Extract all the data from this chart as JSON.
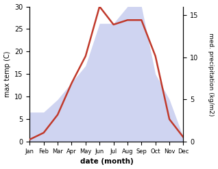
{
  "months": [
    "Jan",
    "Feb",
    "Mar",
    "Apr",
    "May",
    "Jun",
    "Jul",
    "Aug",
    "Sep",
    "Oct",
    "Nov",
    "Dec"
  ],
  "temperature": [
    0.5,
    2.0,
    6.0,
    13.0,
    19.0,
    30.0,
    26.0,
    27.0,
    27.0,
    19.0,
    5.0,
    1.0
  ],
  "precipitation": [
    3.5,
    3.5,
    5.0,
    7.0,
    9.0,
    14.0,
    14.0,
    16.0,
    16.0,
    8.0,
    5.0,
    0.5
  ],
  "temp_color": "#c0392b",
  "precip_fill_color": "#b0b8e8",
  "temp_ylim": [
    0,
    30
  ],
  "precip_ylim": [
    0,
    16
  ],
  "temp_yticks": [
    0,
    5,
    10,
    15,
    20,
    25,
    30
  ],
  "precip_yticks": [
    0,
    5,
    10,
    15
  ],
  "xlabel": "date (month)",
  "ylabel_left": "max temp (C)",
  "ylabel_right": "med. precipitation (kg/m2)",
  "background_color": "#ffffff",
  "line_width": 1.8,
  "precip_alpha": 0.6
}
